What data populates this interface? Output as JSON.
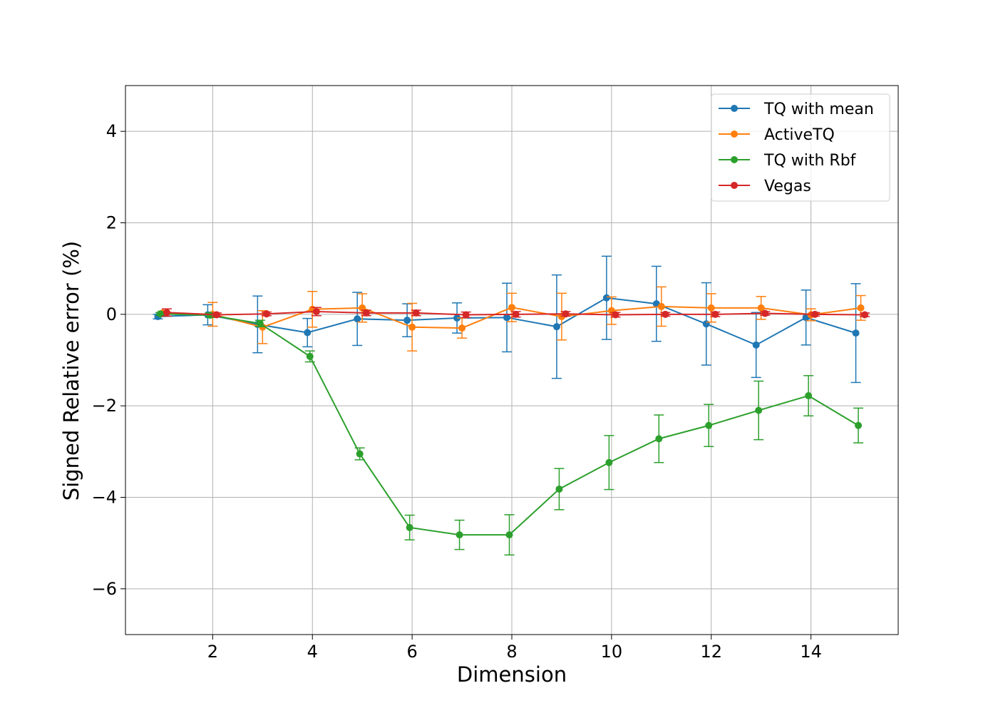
{
  "chart_data": {
    "type": "line",
    "title": "",
    "xlabel": "Dimension",
    "ylabel": "Signed Relative error (%)",
    "xlim": [
      0.25,
      15.75
    ],
    "ylim": [
      -7,
      5
    ],
    "xticks": [
      2,
      4,
      6,
      8,
      10,
      12,
      14
    ],
    "yticks": [
      -6,
      -4,
      -2,
      0,
      2,
      4
    ],
    "grid": true,
    "legend_position": "top-right",
    "x": [
      1,
      2,
      3,
      4,
      5,
      6,
      7,
      8,
      9,
      10,
      11,
      12,
      13,
      14,
      15
    ],
    "series": [
      {
        "name": "TQ with mean",
        "color": "#1f77b4",
        "x_offset": -0.1,
        "values": [
          -0.05,
          -0.01,
          -0.22,
          -0.4,
          -0.1,
          -0.13,
          -0.08,
          -0.07,
          -0.27,
          0.36,
          0.23,
          -0.21,
          -0.67,
          -0.07,
          -0.41
        ],
        "errors": [
          0.05,
          0.22,
          0.62,
          0.31,
          0.58,
          0.36,
          0.33,
          0.75,
          1.13,
          0.91,
          0.82,
          0.9,
          0.71,
          0.6,
          1.08
        ]
      },
      {
        "name": "ActiveTQ",
        "color": "#ff7f0e",
        "x_offset": 0,
        "values": [
          0.03,
          0.0,
          -0.28,
          0.11,
          0.14,
          -0.28,
          -0.3,
          0.15,
          -0.05,
          0.08,
          0.17,
          0.14,
          0.14,
          -0.01,
          0.14
        ],
        "errors": [
          0.04,
          0.26,
          0.36,
          0.39,
          0.31,
          0.52,
          0.22,
          0.31,
          0.51,
          0.3,
          0.43,
          0.31,
          0.25,
          0.13,
          0.27
        ]
      },
      {
        "name": "TQ with Rbf",
        "color": "#2ca02c",
        "x_offset": -0.05,
        "values": [
          0.01,
          -0.02,
          -0.2,
          -0.92,
          -3.05,
          -4.66,
          -4.82,
          -4.82,
          -3.82,
          -3.24,
          -2.72,
          -2.43,
          -2.1,
          -1.78,
          -2.43
        ],
        "errors": [
          0.03,
          0.05,
          0.07,
          0.12,
          0.13,
          0.27,
          0.32,
          0.44,
          0.45,
          0.59,
          0.52,
          0.46,
          0.64,
          0.44,
          0.38
        ]
      },
      {
        "name": "Vegas",
        "color": "#d62728",
        "x_offset": 0.08,
        "values": [
          0.04,
          -0.01,
          0.01,
          0.06,
          0.03,
          0.03,
          -0.01,
          0.0,
          0.01,
          -0.01,
          0.0,
          0.0,
          0.02,
          0.0,
          -0.01
        ],
        "errors": [
          0.08,
          0.04,
          0.04,
          0.09,
          0.06,
          0.06,
          0.06,
          0.06,
          0.05,
          0.05,
          0.04,
          0.05,
          0.04,
          0.04,
          0.04
        ]
      }
    ]
  }
}
